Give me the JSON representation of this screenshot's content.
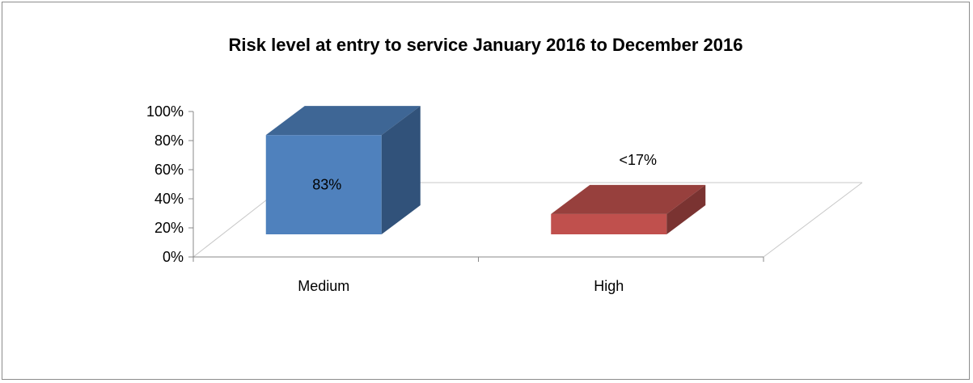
{
  "chart_data": {
    "type": "bar",
    "title": "Risk level at entry to service January 2016 to December 2016",
    "categories": [
      "Medium",
      "High"
    ],
    "values": [
      83,
      17
    ],
    "data_labels": [
      "83%",
      "<17%"
    ],
    "yticks": [
      "0%",
      "20%",
      "40%",
      "60%",
      "80%",
      "100%"
    ],
    "ylim": [
      0,
      100
    ],
    "xlabel": "",
    "ylabel": "",
    "grid": false,
    "colors": {
      "Medium": {
        "front": "#4f81bd",
        "top": "#3e6695",
        "side": "#31527a"
      },
      "High": {
        "front": "#c0504d",
        "top": "#97403d",
        "side": "#7a3331"
      },
      "axis": "#888888"
    }
  }
}
